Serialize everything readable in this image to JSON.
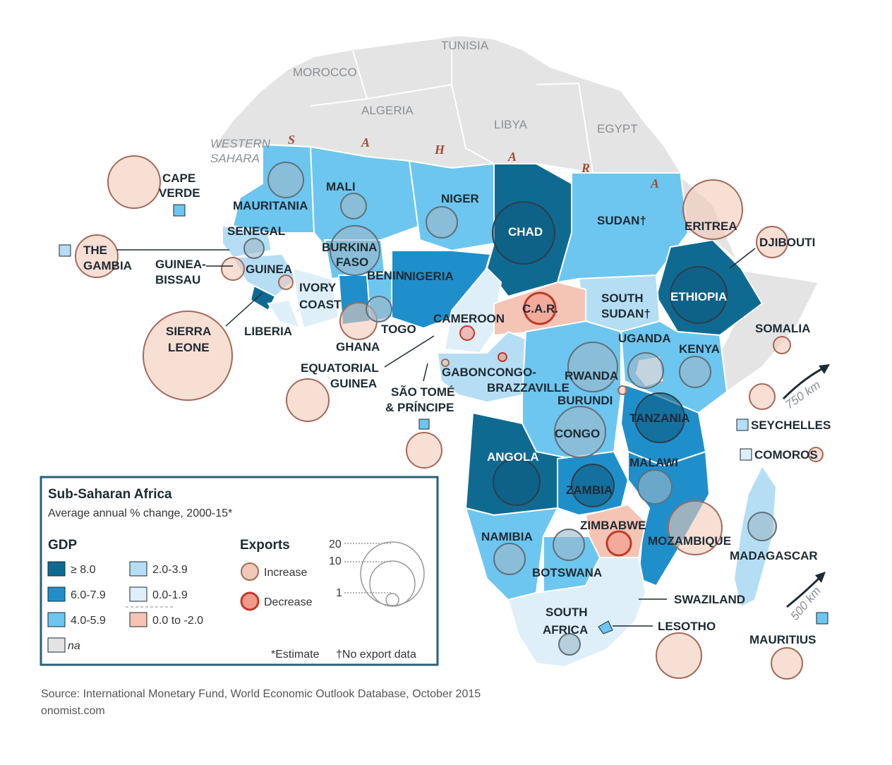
{
  "legend": {
    "title": "Sub-Saharan Africa",
    "subtitle": "Average annual % change, 2000-15*",
    "gdp_heading": "GDP",
    "exports_heading": "Exports",
    "gdp_classes": [
      {
        "label": "≥ 8.0",
        "color": "#0f6a92"
      },
      {
        "label": "6.0-7.9",
        "color": "#1f8fcb"
      },
      {
        "label": "4.0-5.9",
        "color": "#6cc6ef"
      },
      {
        "label": "2.0-3.9",
        "color": "#b5def5"
      },
      {
        "label": "0.0-1.9",
        "color": "#deeff9"
      },
      {
        "label": "0.0 to -2.0",
        "color": "#f4c4b4"
      },
      {
        "label": "na",
        "color": "#e3e3e3"
      }
    ],
    "exports_increase": "Increase",
    "exports_decrease": "Decrease",
    "size_labels": [
      "20",
      "10",
      "1"
    ],
    "footnote_estimate": "*Estimate",
    "footnote_no_export": "†No export data"
  },
  "source": "Source: International Monetary Fund, World Economic Outlook Database, October 2015",
  "credit": "onomist.com",
  "scales": {
    "mainland": "750 km",
    "islands": "500 km"
  },
  "sahara": [
    "S",
    "A",
    "H",
    "A",
    "R",
    "A"
  ],
  "north_africa": [
    "TUNISIA",
    "MOROCCO",
    "ALGERIA",
    "LIBYA",
    "EGYPT",
    "WESTERN",
    "SAHARA",
    "SOMALIA"
  ],
  "labels": {
    "cape_verde": [
      "CAPE",
      "VERDE"
    ],
    "mauritania": "MAURITANIA",
    "mali": "MALI",
    "niger": "NIGER",
    "chad": "CHAD",
    "sudan": "SUDAN†",
    "eritrea": "ERITREA",
    "djibouti": "DJIBOUTI",
    "senegal": "SENEGAL",
    "the_gambia": [
      "THE",
      "GAMBIA"
    ],
    "guinea_bissau": [
      "GUINEA-",
      "BISSAU"
    ],
    "guinea": "GUINEA",
    "burkina_faso": [
      "BURKINA",
      "FASO"
    ],
    "benin": "BENIN",
    "nigeria": "NIGERIA",
    "ivory_coast": [
      "IVORY",
      "COAST"
    ],
    "sierra_leone": [
      "SIERRA",
      "LEONE"
    ],
    "liberia": "LIBERIA",
    "ghana": "GHANA",
    "togo": "TOGO",
    "cameroon": "CAMEROON",
    "car": "C.A.R.",
    "south_sudan": [
      "SOUTH",
      "SUDAN†"
    ],
    "ethiopia": "ETHIOPIA",
    "uganda": "UGANDA",
    "kenya": "KENYA",
    "equatorial_guinea": [
      "EQUATORIAL",
      "GUINEA"
    ],
    "gabon": "GABON",
    "congo_brazzaville": [
      "CONGO-",
      "BRAZZAVILLE"
    ],
    "rwanda": "RWANDA",
    "burundi": "BURUNDI",
    "sao_tome": [
      "SÃO TOMÉ",
      "& PRÍNCIPE"
    ],
    "congo": "CONGO",
    "tanzania": "TANZANIA",
    "seychelles": "SEYCHELLES",
    "comoros": "COMOROS",
    "angola": "ANGOLA",
    "malawi": "MALAWI",
    "zambia": "ZAMBIA",
    "zimbabwe": "ZIMBABWE",
    "mozambique": "MOZAMBIQUE",
    "madagascar": "MADAGASCAR",
    "namibia": "NAMIBIA",
    "botswana": "BOTSWANA",
    "swaziland": "SWAZILAND",
    "south_africa": [
      "SOUTH",
      "AFRICA"
    ],
    "lesotho": "LESOTHO",
    "mauritius": "MAURITIUS"
  }
}
